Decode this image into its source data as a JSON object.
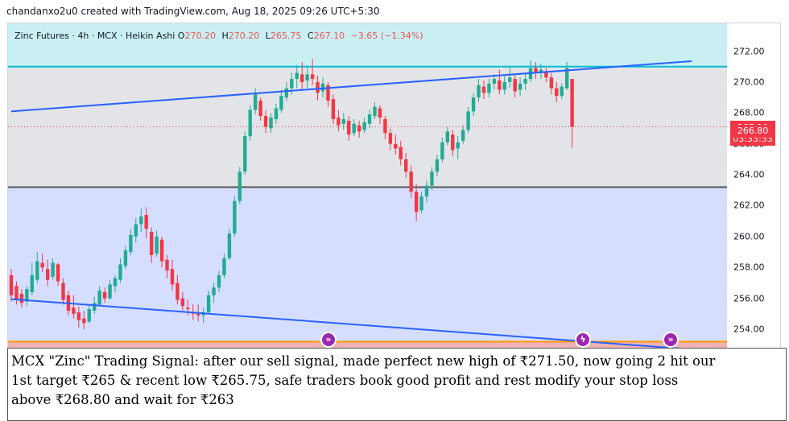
{
  "header": {
    "credit": "chandanxo2u0 created with TradingView.com, Aug 18, 2025 09:26 UTC+5:30"
  },
  "legend": {
    "symbol": "Zinc Futures · 4h · MCX · Heikin Ashi",
    "o_label": "O",
    "o_value": "270.20",
    "h_label": "H",
    "h_value": "270.20",
    "l_label": "L",
    "l_value": "265.75",
    "c_label": "C",
    "c_value": "267.10",
    "change": "−3.65 (−1.34%)"
  },
  "price_axis": {
    "ticks": [
      "272.00",
      "270.00",
      "268.00",
      "266.00",
      "264.00",
      "262.00",
      "260.00",
      "258.00",
      "256.00",
      "254.00"
    ],
    "last_price": "267.10",
    "countdown": "03:33:53",
    "low_label": "266.80"
  },
  "colors": {
    "up": "#22ab94",
    "down": "#f23645",
    "trendline": "#2962ff",
    "resistance": "#00bcd4",
    "support": "#555555",
    "target": "#ff9800",
    "zone_top": "#c9eff3",
    "zone_mid": "#e3e4e8",
    "zone_low": "#d6deff",
    "zone_red": "#efb2b4",
    "marker": "#9c27b0"
  },
  "markers": [
    {
      "icon": "double-chevron-right-icon",
      "glyph": "»"
    },
    {
      "icon": "lightning-icon",
      "glyph": "ϟ"
    },
    {
      "icon": "double-chevron-right-icon",
      "glyph": "»"
    }
  ],
  "caption": {
    "line1": "MCX \"Zinc\" Trading Signal: after our sell signal, made perfect new high of ₹271.50, now going 2 hit our",
    "line2": "1st target ₹265 & recent low ₹265.75, safe traders book good profit and rest modify your stop loss",
    "line3": "above ₹268.80 and wait for ₹263"
  },
  "chart_data": {
    "type": "candlestick",
    "style": "Heikin Ashi",
    "symbol": "Zinc Futures",
    "interval": "4h",
    "exchange": "MCX",
    "ylim": [
      252.7,
      273.8
    ],
    "horizontal_levels": [
      {
        "role": "resistance",
        "value": 271.0
      },
      {
        "role": "support",
        "value": 263.2
      },
      {
        "role": "target",
        "value": 253.2
      }
    ],
    "zones": [
      {
        "role": "upper",
        "from": 271.0,
        "to": 273.8
      },
      {
        "role": "middle",
        "from": 263.2,
        "to": 271.0
      },
      {
        "role": "lower",
        "from": 253.2,
        "to": 263.2
      },
      {
        "role": "bottom",
        "from": 252.7,
        "to": 253.2
      }
    ],
    "trendlines": [
      {
        "role": "upper-channel",
        "start": {
          "bar": 0,
          "price": 268.1
        },
        "end": {
          "bar": 131,
          "price": 271.35
        }
      },
      {
        "role": "lower-channel",
        "start": {
          "bar": 0,
          "price": 255.95
        },
        "end": {
          "bar": 131,
          "price": 252.7
        }
      }
    ],
    "candles": [
      {
        "o": 257.5,
        "h": 257.9,
        "l": 255.8,
        "c": 256.2
      },
      {
        "o": 256.8,
        "h": 257.1,
        "l": 255.6,
        "c": 255.9
      },
      {
        "o": 256.3,
        "h": 256.6,
        "l": 255.4,
        "c": 255.7
      },
      {
        "o": 255.8,
        "h": 256.8,
        "l": 255.5,
        "c": 256.6
      },
      {
        "o": 256.4,
        "h": 258.3,
        "l": 256.2,
        "c": 257.5
      },
      {
        "o": 257.2,
        "h": 259.0,
        "l": 257.0,
        "c": 258.4
      },
      {
        "o": 258.3,
        "h": 258.9,
        "l": 257.7,
        "c": 258.0
      },
      {
        "o": 257.9,
        "h": 258.5,
        "l": 256.8,
        "c": 257.2
      },
      {
        "o": 257.4,
        "h": 258.6,
        "l": 257.2,
        "c": 258.3
      },
      {
        "o": 258.2,
        "h": 258.3,
        "l": 256.8,
        "c": 257.1
      },
      {
        "o": 257.0,
        "h": 257.3,
        "l": 255.6,
        "c": 255.9
      },
      {
        "o": 256.2,
        "h": 256.5,
        "l": 254.9,
        "c": 255.2
      },
      {
        "o": 255.4,
        "h": 256.2,
        "l": 254.7,
        "c": 255.0
      },
      {
        "o": 255.1,
        "h": 255.5,
        "l": 254.1,
        "c": 254.6
      },
      {
        "o": 254.7,
        "h": 255.2,
        "l": 254.0,
        "c": 254.4
      },
      {
        "o": 254.5,
        "h": 255.6,
        "l": 254.4,
        "c": 255.3
      },
      {
        "o": 255.2,
        "h": 256.1,
        "l": 255.0,
        "c": 255.7
      },
      {
        "o": 255.6,
        "h": 256.8,
        "l": 255.5,
        "c": 256.5
      },
      {
        "o": 256.4,
        "h": 256.7,
        "l": 255.7,
        "c": 256.0
      },
      {
        "o": 256.0,
        "h": 257.2,
        "l": 255.9,
        "c": 256.9
      },
      {
        "o": 256.8,
        "h": 257.5,
        "l": 256.4,
        "c": 257.3
      },
      {
        "o": 257.2,
        "h": 258.6,
        "l": 257.0,
        "c": 258.2
      },
      {
        "o": 258.1,
        "h": 259.4,
        "l": 257.9,
        "c": 259.1
      },
      {
        "o": 259.0,
        "h": 260.5,
        "l": 258.8,
        "c": 260.1
      },
      {
        "o": 260.0,
        "h": 261.2,
        "l": 259.6,
        "c": 260.8
      },
      {
        "o": 260.8,
        "h": 261.8,
        "l": 260.3,
        "c": 261.3
      },
      {
        "o": 261.4,
        "h": 261.9,
        "l": 259.9,
        "c": 260.5
      },
      {
        "o": 260.3,
        "h": 260.6,
        "l": 258.3,
        "c": 258.8
      },
      {
        "o": 258.9,
        "h": 260.4,
        "l": 258.7,
        "c": 260.0
      },
      {
        "o": 259.8,
        "h": 260.0,
        "l": 258.0,
        "c": 258.4
      },
      {
        "o": 258.5,
        "h": 258.8,
        "l": 257.3,
        "c": 257.8
      },
      {
        "o": 257.9,
        "h": 258.5,
        "l": 256.5,
        "c": 256.9
      },
      {
        "o": 257.0,
        "h": 257.5,
        "l": 255.6,
        "c": 255.9
      },
      {
        "o": 256.0,
        "h": 256.4,
        "l": 255.1,
        "c": 255.5
      },
      {
        "o": 255.4,
        "h": 255.9,
        "l": 254.9,
        "c": 255.3
      },
      {
        "o": 255.1,
        "h": 255.6,
        "l": 254.6,
        "c": 255.0
      },
      {
        "o": 255.0,
        "h": 255.6,
        "l": 254.5,
        "c": 254.9
      },
      {
        "o": 254.9,
        "h": 255.4,
        "l": 254.4,
        "c": 255.1
      },
      {
        "o": 255.1,
        "h": 256.5,
        "l": 255.0,
        "c": 256.2
      },
      {
        "o": 256.2,
        "h": 257.0,
        "l": 255.7,
        "c": 256.7
      },
      {
        "o": 256.7,
        "h": 257.8,
        "l": 256.4,
        "c": 257.5
      },
      {
        "o": 257.5,
        "h": 258.9,
        "l": 257.3,
        "c": 258.6
      },
      {
        "o": 258.6,
        "h": 260.5,
        "l": 258.5,
        "c": 260.2
      },
      {
        "o": 260.2,
        "h": 262.6,
        "l": 260.0,
        "c": 262.3
      },
      {
        "o": 262.3,
        "h": 264.5,
        "l": 262.1,
        "c": 264.2
      },
      {
        "o": 264.2,
        "h": 266.8,
        "l": 264.0,
        "c": 266.5
      },
      {
        "o": 266.5,
        "h": 268.5,
        "l": 266.2,
        "c": 268.2
      },
      {
        "o": 268.2,
        "h": 269.6,
        "l": 267.9,
        "c": 269.2
      },
      {
        "o": 268.8,
        "h": 269.0,
        "l": 267.5,
        "c": 267.8
      },
      {
        "o": 267.8,
        "h": 268.2,
        "l": 266.7,
        "c": 267.1
      },
      {
        "o": 267.0,
        "h": 268.0,
        "l": 266.7,
        "c": 267.7
      },
      {
        "o": 267.6,
        "h": 268.6,
        "l": 267.3,
        "c": 268.3
      },
      {
        "o": 268.2,
        "h": 269.5,
        "l": 268.0,
        "c": 269.1
      },
      {
        "o": 269.0,
        "h": 270.0,
        "l": 268.8,
        "c": 269.6
      },
      {
        "o": 269.6,
        "h": 270.6,
        "l": 269.2,
        "c": 270.2
      },
      {
        "o": 270.2,
        "h": 271.1,
        "l": 269.6,
        "c": 270.6
      },
      {
        "o": 270.5,
        "h": 271.3,
        "l": 269.5,
        "c": 270.0
      },
      {
        "o": 270.1,
        "h": 271.0,
        "l": 269.6,
        "c": 270.5
      },
      {
        "o": 270.5,
        "h": 271.5,
        "l": 269.8,
        "c": 270.2
      },
      {
        "o": 270.0,
        "h": 270.4,
        "l": 268.8,
        "c": 269.3
      },
      {
        "o": 269.4,
        "h": 270.3,
        "l": 269.0,
        "c": 269.9
      },
      {
        "o": 269.8,
        "h": 270.0,
        "l": 268.4,
        "c": 268.8
      },
      {
        "o": 268.9,
        "h": 269.2,
        "l": 267.3,
        "c": 267.6
      },
      {
        "o": 267.7,
        "h": 268.2,
        "l": 266.8,
        "c": 267.2
      },
      {
        "o": 267.3,
        "h": 268.0,
        "l": 266.9,
        "c": 267.6
      },
      {
        "o": 267.5,
        "h": 267.8,
        "l": 266.2,
        "c": 266.6
      },
      {
        "o": 266.7,
        "h": 267.6,
        "l": 266.5,
        "c": 267.3
      },
      {
        "o": 267.2,
        "h": 267.5,
        "l": 266.4,
        "c": 266.8
      },
      {
        "o": 266.9,
        "h": 267.7,
        "l": 266.7,
        "c": 267.4
      },
      {
        "o": 267.3,
        "h": 268.2,
        "l": 267.0,
        "c": 267.9
      },
      {
        "o": 267.8,
        "h": 268.7,
        "l": 267.6,
        "c": 268.4
      },
      {
        "o": 268.3,
        "h": 268.5,
        "l": 267.3,
        "c": 267.7
      },
      {
        "o": 267.6,
        "h": 267.8,
        "l": 266.3,
        "c": 266.7
      },
      {
        "o": 266.7,
        "h": 267.0,
        "l": 265.6,
        "c": 266.0
      },
      {
        "o": 266.0,
        "h": 266.6,
        "l": 265.3,
        "c": 265.7
      },
      {
        "o": 265.8,
        "h": 266.2,
        "l": 264.6,
        "c": 265.0
      },
      {
        "o": 265.0,
        "h": 265.4,
        "l": 263.8,
        "c": 264.2
      },
      {
        "o": 264.2,
        "h": 264.6,
        "l": 262.5,
        "c": 262.9
      },
      {
        "o": 262.9,
        "h": 263.4,
        "l": 261.0,
        "c": 261.6
      },
      {
        "o": 261.7,
        "h": 262.9,
        "l": 261.5,
        "c": 262.6
      },
      {
        "o": 262.6,
        "h": 263.6,
        "l": 262.2,
        "c": 263.3
      },
      {
        "o": 263.3,
        "h": 264.5,
        "l": 263.0,
        "c": 264.2
      },
      {
        "o": 264.2,
        "h": 265.3,
        "l": 263.9,
        "c": 265.0
      },
      {
        "o": 265.0,
        "h": 266.4,
        "l": 264.8,
        "c": 266.1
      },
      {
        "o": 266.1,
        "h": 267.1,
        "l": 265.9,
        "c": 266.8
      },
      {
        "o": 266.6,
        "h": 266.9,
        "l": 265.2,
        "c": 265.6
      },
      {
        "o": 265.7,
        "h": 266.5,
        "l": 265.0,
        "c": 266.1
      },
      {
        "o": 266.2,
        "h": 267.2,
        "l": 266.0,
        "c": 266.9
      },
      {
        "o": 266.9,
        "h": 268.4,
        "l": 266.7,
        "c": 268.1
      },
      {
        "o": 268.1,
        "h": 269.3,
        "l": 267.8,
        "c": 269.0
      },
      {
        "o": 269.0,
        "h": 270.2,
        "l": 268.7,
        "c": 269.8
      },
      {
        "o": 269.7,
        "h": 270.1,
        "l": 268.9,
        "c": 269.3
      },
      {
        "o": 269.3,
        "h": 270.2,
        "l": 269.0,
        "c": 269.9
      },
      {
        "o": 269.9,
        "h": 270.5,
        "l": 269.5,
        "c": 270.2
      },
      {
        "o": 270.1,
        "h": 270.8,
        "l": 269.2,
        "c": 269.5
      },
      {
        "o": 269.5,
        "h": 270.4,
        "l": 269.2,
        "c": 270.0
      },
      {
        "o": 270.0,
        "h": 271.0,
        "l": 269.6,
        "c": 270.3
      },
      {
        "o": 270.2,
        "h": 270.5,
        "l": 269.0,
        "c": 269.4
      },
      {
        "o": 269.5,
        "h": 270.3,
        "l": 269.1,
        "c": 269.9
      },
      {
        "o": 269.9,
        "h": 270.6,
        "l": 269.5,
        "c": 270.2
      },
      {
        "o": 270.2,
        "h": 271.4,
        "l": 270.0,
        "c": 270.9
      },
      {
        "o": 270.9,
        "h": 271.3,
        "l": 270.2,
        "c": 270.6
      },
      {
        "o": 270.6,
        "h": 271.2,
        "l": 270.2,
        "c": 270.8
      },
      {
        "o": 270.7,
        "h": 270.9,
        "l": 270.0,
        "c": 270.3
      },
      {
        "o": 270.3,
        "h": 270.6,
        "l": 269.2,
        "c": 269.6
      },
      {
        "o": 269.6,
        "h": 270.0,
        "l": 268.7,
        "c": 269.1
      },
      {
        "o": 269.1,
        "h": 269.9,
        "l": 268.9,
        "c": 269.7
      },
      {
        "o": 269.6,
        "h": 271.3,
        "l": 269.5,
        "c": 270.9
      },
      {
        "o": 270.2,
        "h": 270.2,
        "l": 265.75,
        "c": 267.1
      }
    ]
  }
}
